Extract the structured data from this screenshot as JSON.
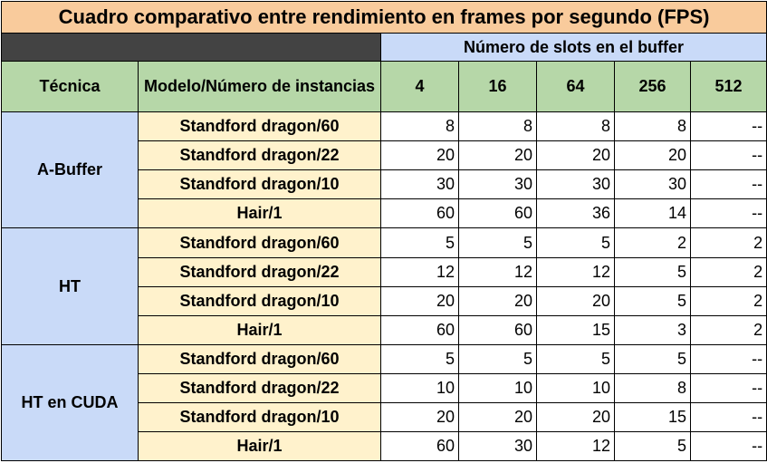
{
  "title": "Cuadro comparativo entre rendimiento en frames por segundo (FPS)",
  "slots_header": "Número de slots en el buffer",
  "col_technique": "Técnica",
  "col_model": "Modelo/Número de instancias",
  "slots": [
    "4",
    "16",
    "64",
    "256",
    "512"
  ],
  "groups": [
    {
      "technique": "A-Buffer",
      "rows": [
        {
          "model": "Standford dragon/60",
          "values": [
            "8",
            "8",
            "8",
            "8",
            "--"
          ]
        },
        {
          "model": "Standford dragon/22",
          "values": [
            "20",
            "20",
            "20",
            "20",
            "--"
          ]
        },
        {
          "model": "Standford dragon/10",
          "values": [
            "30",
            "30",
            "30",
            "30",
            "--"
          ]
        },
        {
          "model": "Hair/1",
          "values": [
            "60",
            "60",
            "36",
            "14",
            "--"
          ]
        }
      ]
    },
    {
      "technique": "HT",
      "rows": [
        {
          "model": "Standford dragon/60",
          "values": [
            "5",
            "5",
            "5",
            "2",
            "2"
          ]
        },
        {
          "model": "Standford dragon/22",
          "values": [
            "12",
            "12",
            "12",
            "5",
            "2"
          ]
        },
        {
          "model": "Standford dragon/10",
          "values": [
            "20",
            "20",
            "20",
            "5",
            "2"
          ]
        },
        {
          "model": "Hair/1",
          "values": [
            "60",
            "60",
            "15",
            "3",
            "2"
          ]
        }
      ]
    },
    {
      "technique": "HT en CUDA",
      "rows": [
        {
          "model": "Standford dragon/60",
          "values": [
            "5",
            "5",
            "5",
            "5",
            "--"
          ]
        },
        {
          "model": "Standford dragon/22",
          "values": [
            "10",
            "10",
            "10",
            "8",
            "--"
          ]
        },
        {
          "model": "Standford dragon/10",
          "values": [
            "20",
            "20",
            "20",
            "15",
            "--"
          ]
        },
        {
          "model": "Hair/1",
          "values": [
            "60",
            "30",
            "12",
            "5",
            "--"
          ]
        }
      ]
    }
  ]
}
